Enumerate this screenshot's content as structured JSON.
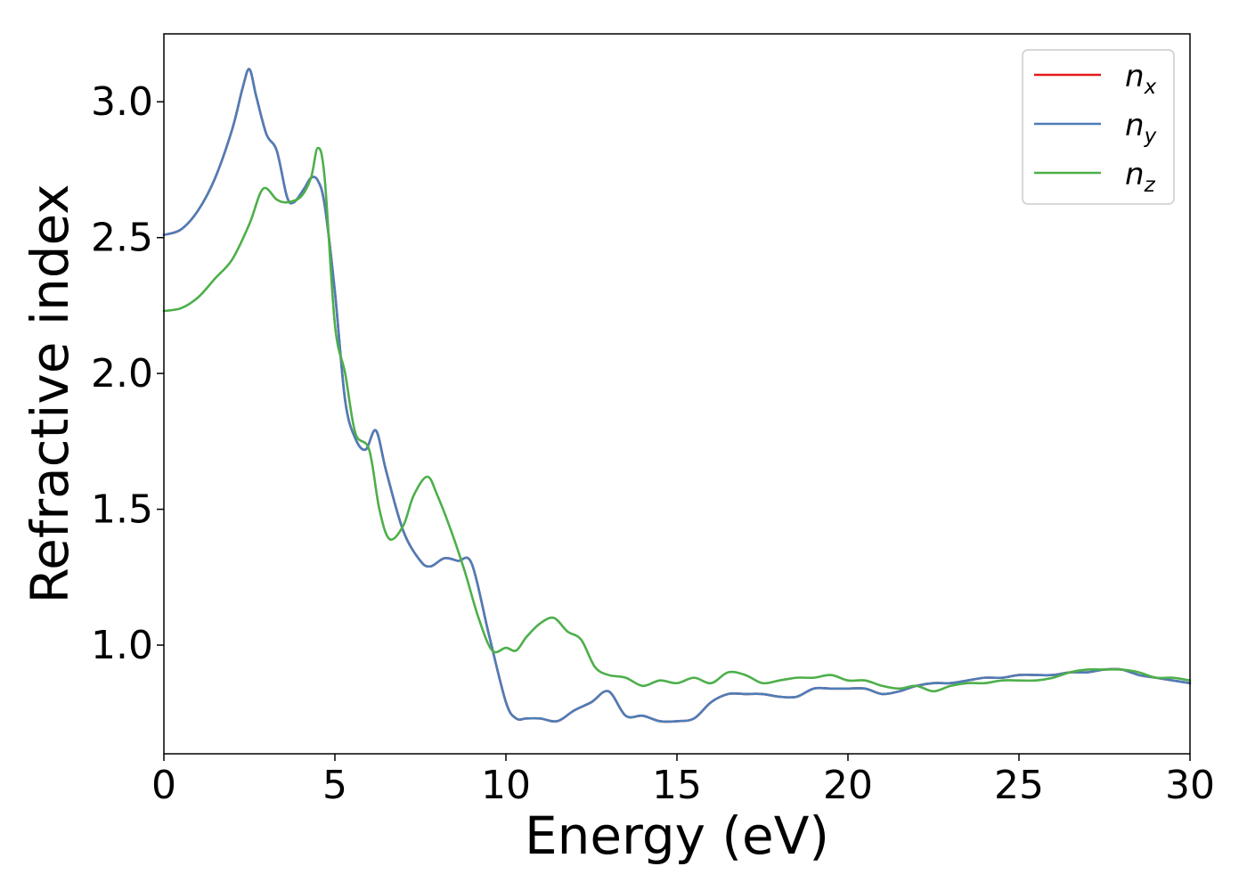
{
  "chart_data": {
    "type": "line",
    "title": "",
    "xlabel": "Energy (eV)",
    "ylabel": "Refractive index",
    "xlim": [
      0,
      30
    ],
    "ylim": [
      0.6,
      3.25
    ],
    "xticks": [
      0,
      5,
      10,
      15,
      20,
      25,
      30
    ],
    "xtick_labels": [
      "0",
      "5",
      "10",
      "15",
      "20",
      "25",
      "30"
    ],
    "yticks": [
      1.0,
      1.5,
      2.0,
      2.5,
      3.0
    ],
    "ytick_labels": [
      "1.0",
      "1.5",
      "2.0",
      "2.5",
      "3.0"
    ],
    "grid": false,
    "legend_position": "top-right",
    "series": [
      {
        "name": "n_x",
        "label_base": "n",
        "label_sub": "x",
        "color": "#e41a1c",
        "x": [
          0,
          0.5,
          1,
          1.5,
          2,
          2.3,
          2.5,
          2.7,
          3,
          3.3,
          3.6,
          3.8,
          4.1,
          4.3,
          4.5,
          4.7,
          5,
          5.3,
          5.6,
          5.9,
          6.2,
          6.5,
          7,
          7.5,
          7.8,
          8.2,
          8.6,
          9,
          9.5,
          10,
          10.3,
          10.6,
          11,
          11.5,
          12,
          12.5,
          13,
          13.5,
          14,
          14.5,
          15,
          15.5,
          16,
          16.5,
          17,
          17.5,
          18,
          18.5,
          19,
          19.5,
          20,
          20.5,
          21,
          21.5,
          22,
          22.5,
          23,
          23.5,
          24,
          24.5,
          25,
          25.5,
          26,
          26.5,
          27,
          27.5,
          28,
          28.5,
          29,
          29.5,
          30
        ],
        "y": [
          2.51,
          2.53,
          2.6,
          2.72,
          2.9,
          3.05,
          3.12,
          3.02,
          2.88,
          2.82,
          2.65,
          2.63,
          2.68,
          2.72,
          2.71,
          2.62,
          2.3,
          1.9,
          1.76,
          1.72,
          1.79,
          1.64,
          1.42,
          1.31,
          1.29,
          1.32,
          1.31,
          1.3,
          1.04,
          0.79,
          0.73,
          0.73,
          0.73,
          0.72,
          0.76,
          0.79,
          0.83,
          0.74,
          0.74,
          0.72,
          0.72,
          0.73,
          0.79,
          0.82,
          0.82,
          0.82,
          0.81,
          0.81,
          0.84,
          0.84,
          0.84,
          0.84,
          0.82,
          0.83,
          0.85,
          0.86,
          0.86,
          0.87,
          0.88,
          0.88,
          0.89,
          0.89,
          0.89,
          0.9,
          0.9,
          0.91,
          0.91,
          0.89,
          0.88,
          0.87,
          0.86
        ]
      },
      {
        "name": "n_y",
        "label_base": "n",
        "label_sub": "y",
        "color": "#4c7eb8",
        "x": [
          0,
          0.5,
          1,
          1.5,
          2,
          2.3,
          2.5,
          2.7,
          3,
          3.3,
          3.6,
          3.8,
          4.1,
          4.3,
          4.5,
          4.7,
          5,
          5.3,
          5.6,
          5.9,
          6.2,
          6.5,
          7,
          7.5,
          7.8,
          8.2,
          8.6,
          9,
          9.5,
          10,
          10.3,
          10.6,
          11,
          11.5,
          12,
          12.5,
          13,
          13.5,
          14,
          14.5,
          15,
          15.5,
          16,
          16.5,
          17,
          17.5,
          18,
          18.5,
          19,
          19.5,
          20,
          20.5,
          21,
          21.5,
          22,
          22.5,
          23,
          23.5,
          24,
          24.5,
          25,
          25.5,
          26,
          26.5,
          27,
          27.5,
          28,
          28.5,
          29,
          29.5,
          30
        ],
        "y": [
          2.51,
          2.53,
          2.6,
          2.72,
          2.9,
          3.05,
          3.12,
          3.02,
          2.88,
          2.82,
          2.65,
          2.63,
          2.68,
          2.72,
          2.71,
          2.62,
          2.3,
          1.9,
          1.76,
          1.72,
          1.79,
          1.64,
          1.42,
          1.31,
          1.29,
          1.32,
          1.31,
          1.3,
          1.04,
          0.79,
          0.73,
          0.73,
          0.73,
          0.72,
          0.76,
          0.79,
          0.83,
          0.74,
          0.74,
          0.72,
          0.72,
          0.73,
          0.79,
          0.82,
          0.82,
          0.82,
          0.81,
          0.81,
          0.84,
          0.84,
          0.84,
          0.84,
          0.82,
          0.83,
          0.85,
          0.86,
          0.86,
          0.87,
          0.88,
          0.88,
          0.89,
          0.89,
          0.89,
          0.9,
          0.9,
          0.91,
          0.91,
          0.89,
          0.88,
          0.87,
          0.86
        ]
      },
      {
        "name": "n_z",
        "label_base": "n",
        "label_sub": "z",
        "color": "#4daf4a",
        "x": [
          0,
          0.5,
          1,
          1.5,
          2,
          2.5,
          2.9,
          3.3,
          3.6,
          4,
          4.3,
          4.5,
          4.7,
          5,
          5.3,
          5.6,
          6,
          6.3,
          6.6,
          7,
          7.3,
          7.7,
          8,
          8.4,
          8.8,
          9.2,
          9.6,
          10,
          10.3,
          10.6,
          11,
          11.4,
          11.8,
          12.2,
          12.6,
          13,
          13.5,
          14,
          14.5,
          15,
          15.5,
          16,
          16.5,
          17,
          17.5,
          18,
          18.5,
          19,
          19.5,
          20,
          20.5,
          21,
          21.5,
          22,
          22.5,
          23,
          23.5,
          24,
          24.5,
          25,
          25.5,
          26,
          26.5,
          27,
          27.5,
          28,
          28.5,
          29,
          29.5,
          30
        ],
        "y": [
          2.23,
          2.24,
          2.28,
          2.35,
          2.42,
          2.55,
          2.68,
          2.64,
          2.63,
          2.65,
          2.72,
          2.83,
          2.72,
          2.18,
          2.0,
          1.78,
          1.72,
          1.5,
          1.39,
          1.44,
          1.55,
          1.62,
          1.55,
          1.42,
          1.27,
          1.1,
          0.98,
          0.99,
          0.98,
          1.03,
          1.08,
          1.1,
          1.05,
          1.02,
          0.92,
          0.89,
          0.88,
          0.85,
          0.87,
          0.86,
          0.88,
          0.86,
          0.9,
          0.89,
          0.86,
          0.87,
          0.88,
          0.88,
          0.89,
          0.87,
          0.87,
          0.85,
          0.84,
          0.85,
          0.83,
          0.85,
          0.86,
          0.86,
          0.87,
          0.87,
          0.87,
          0.88,
          0.9,
          0.91,
          0.91,
          0.91,
          0.9,
          0.88,
          0.88,
          0.87
        ]
      }
    ]
  }
}
